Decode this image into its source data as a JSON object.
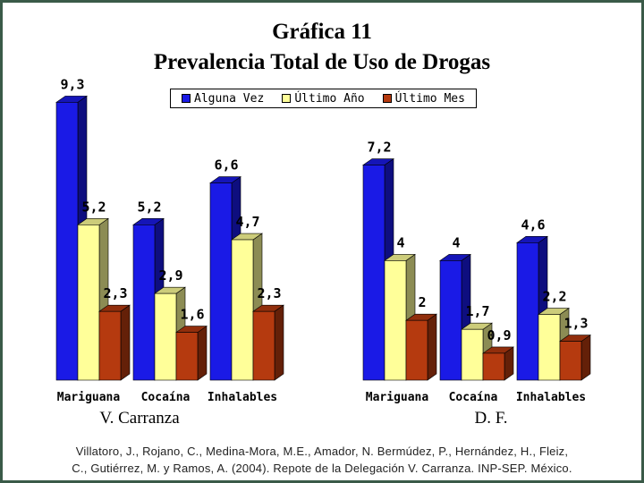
{
  "title": "Gráfica 11",
  "subtitle": "Prevalencia Total de Uso de Drogas",
  "colors": {
    "Alguna Vez": "#1a1ae6",
    "Último Año": "#ffff99",
    "Último Mes": "#b53a0f"
  },
  "chart_data": [
    {
      "type": "bar",
      "group_label": "V. Carranza",
      "categories": [
        "Mariguana",
        "Cocaína",
        "Inhalables"
      ],
      "series": [
        {
          "name": "Alguna Vez",
          "values": [
            9.3,
            5.2,
            6.6
          ],
          "labels": [
            "9,3",
            "5,2",
            "6,6"
          ]
        },
        {
          "name": "Último Año",
          "values": [
            5.2,
            2.9,
            4.7
          ],
          "labels": [
            "5,2",
            "2,9",
            "4,7"
          ]
        },
        {
          "name": "Último Mes",
          "values": [
            2.3,
            1.6,
            2.3
          ],
          "labels": [
            "2,3",
            "1,6",
            "2,3"
          ]
        }
      ]
    },
    {
      "type": "bar",
      "group_label": "D. F.",
      "categories": [
        "Mariguana",
        "Cocaína",
        "Inhalables"
      ],
      "series": [
        {
          "name": "Alguna Vez",
          "values": [
            7.2,
            4,
            4.6
          ],
          "labels": [
            "7,2",
            "4",
            "4,6"
          ]
        },
        {
          "name": "Último Año",
          "values": [
            4,
            1.7,
            2.2
          ],
          "labels": [
            "4",
            "1,7",
            "2,2"
          ]
        },
        {
          "name": "Último Mes",
          "values": [
            2,
            0.9,
            1.3
          ],
          "labels": [
            "2",
            "0,9",
            "1,3"
          ]
        }
      ]
    }
  ],
  "citation": {
    "line1": "Villatoro, J., Rojano, C., Medina-Mora, M.E., Amador, N. Bermúdez, P., Hernández, H., Fleiz,",
    "line2": "C., Gutiérrez, M. y Ramos, A. (2004). Repote de la Delegación V. Carranza. INP-SEP. México."
  }
}
